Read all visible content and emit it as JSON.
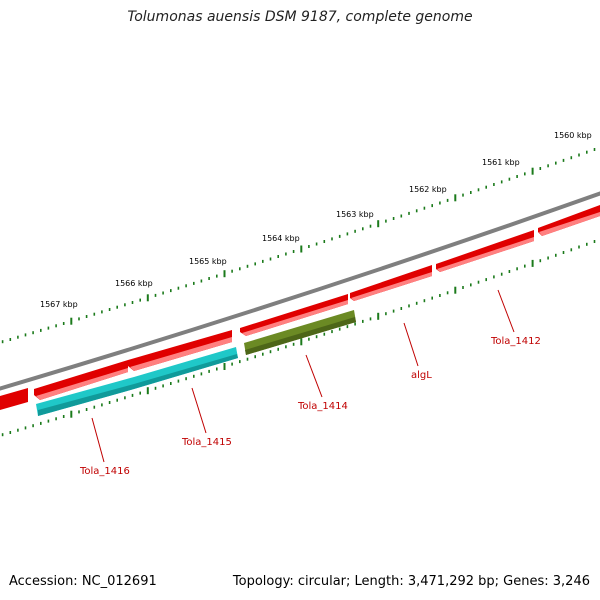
{
  "title": "Tolumonas auensis DSM 9187, complete genome",
  "footer": {
    "accession": "Accession: NC_012691",
    "summary": "Topology: circular; Length: 3,471,292 bp; Genes: 3,246"
  },
  "colors": {
    "backbone": "#7f7f7f",
    "forward_gene": "#e00000",
    "forward_gene_shade": "#ff8080",
    "reverse_gene_cyan": "#1fc8c8",
    "reverse_gene_olive": "#6b8a24",
    "tick": "#1b7a1b",
    "label": "#c00000"
  },
  "ticks": [
    {
      "label": "1567 kbp"
    },
    {
      "label": "1566 kbp"
    },
    {
      "label": "1565 kbp"
    },
    {
      "label": "1564 kbp"
    },
    {
      "label": "1563 kbp"
    },
    {
      "label": "1562 kbp"
    },
    {
      "label": "1561 kbp"
    },
    {
      "label": "1560 kbp"
    }
  ],
  "genes": {
    "forward": [
      {
        "strand": "+",
        "color": "red"
      },
      {
        "strand": "+",
        "color": "red"
      },
      {
        "strand": "+",
        "color": "red"
      },
      {
        "strand": "+",
        "color": "red"
      },
      {
        "strand": "+",
        "color": "red"
      },
      {
        "strand": "+",
        "color": "red"
      },
      {
        "strand": "+",
        "color": "red"
      }
    ],
    "reverse": [
      {
        "name": "Tola_1416",
        "color": "cyan"
      },
      {
        "name": "Tola_1415",
        "color": "cyan"
      },
      {
        "name": "Tola_1414",
        "color": "olive"
      }
    ]
  },
  "gene_labels": [
    {
      "text": "Tola_1416"
    },
    {
      "text": "Tola_1415"
    },
    {
      "text": "Tola_1414"
    },
    {
      "text": "algL"
    },
    {
      "text": "Tola_1412"
    }
  ]
}
